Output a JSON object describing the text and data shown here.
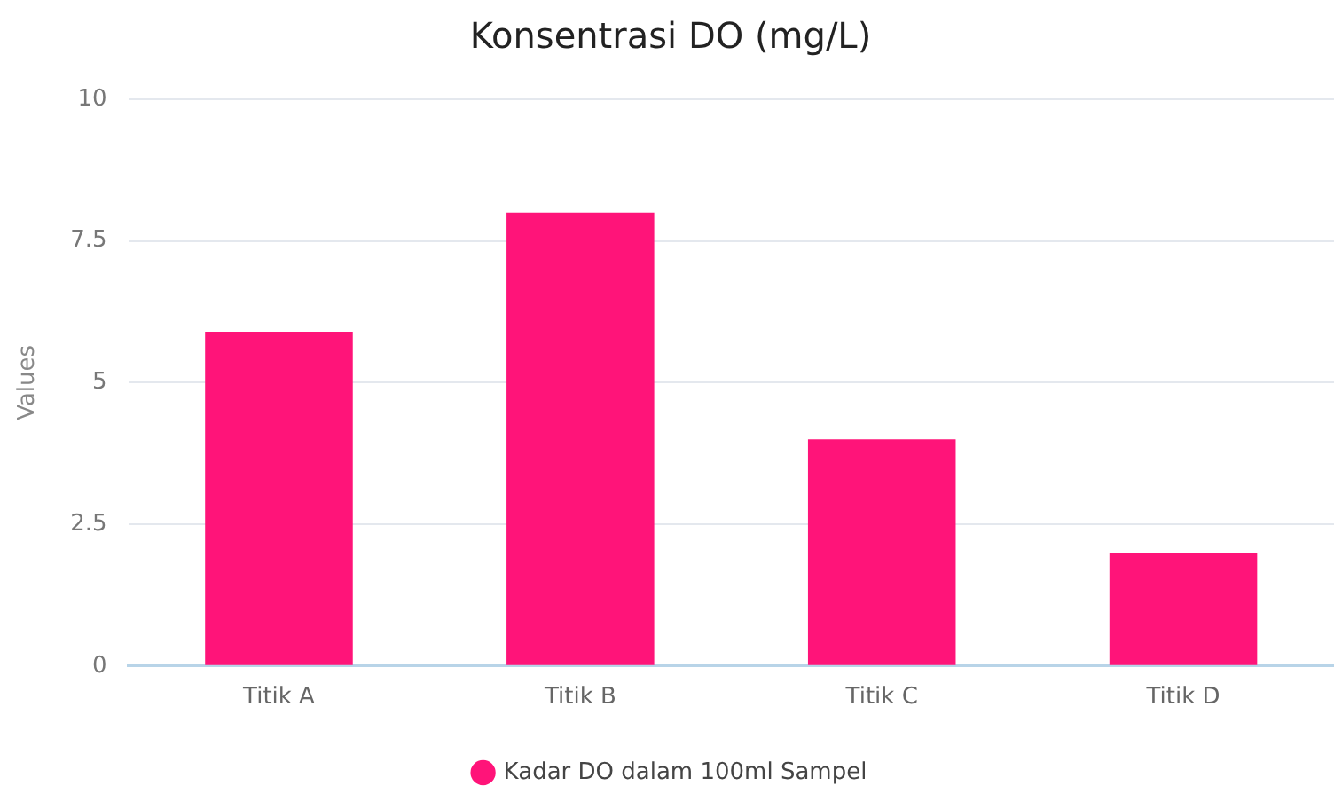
{
  "chart_data": {
    "type": "bar",
    "title": "Konsentrasi DO (mg/L)",
    "ylabel": "Values",
    "categories": [
      "Titik A",
      "Titik B",
      "Titik C",
      "Titik D"
    ],
    "series": [
      {
        "name": "Kadar DO dalam 100ml Sampel",
        "color": "#ff1479",
        "values": [
          5.9,
          8,
          4,
          2
        ]
      }
    ],
    "ylim": [
      0,
      10
    ],
    "yticks": [
      0,
      2.5,
      5,
      7.5,
      10
    ],
    "grid": "y",
    "legend": "bottom"
  }
}
